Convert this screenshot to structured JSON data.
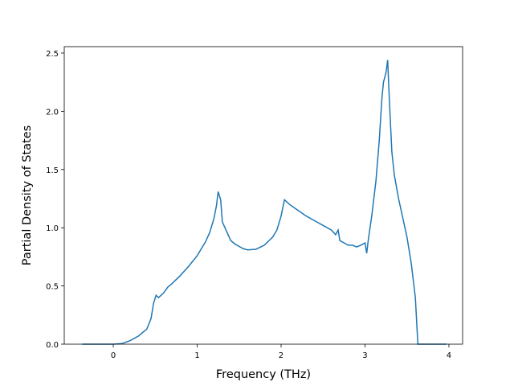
{
  "chart_data": {
    "type": "line",
    "xlabel": "Frequency (THz)",
    "ylabel": "Partial Density of States",
    "x": [
      -0.37,
      0,
      0.1,
      0.2,
      0.3,
      0.4,
      0.45,
      0.48,
      0.51,
      0.54,
      0.6,
      0.65,
      0.7,
      0.8,
      0.9,
      1.0,
      1.1,
      1.15,
      1.2,
      1.23,
      1.25,
      1.28,
      1.3,
      1.35,
      1.4,
      1.45,
      1.5,
      1.55,
      1.6,
      1.7,
      1.8,
      1.9,
      1.95,
      2.0,
      2.04,
      2.1,
      2.2,
      2.3,
      2.4,
      2.5,
      2.6,
      2.65,
      2.68,
      2.7,
      2.8,
      2.85,
      2.9,
      2.95,
      3.0,
      3.02,
      3.04,
      3.08,
      3.13,
      3.17,
      3.2,
      3.22,
      3.25,
      3.27,
      3.29,
      3.32,
      3.35,
      3.4,
      3.5,
      3.55,
      3.6,
      3.63,
      3.97
    ],
    "series": [
      {
        "color": "#1f77b4",
        "values": [
          0,
          0,
          0.005,
          0.03,
          0.07,
          0.13,
          0.22,
          0.35,
          0.42,
          0.4,
          0.44,
          0.49,
          0.52,
          0.59,
          0.67,
          0.76,
          0.88,
          0.96,
          1.08,
          1.19,
          1.31,
          1.24,
          1.05,
          0.97,
          0.89,
          0.86,
          0.84,
          0.82,
          0.81,
          0.815,
          0.85,
          0.92,
          0.98,
          1.1,
          1.24,
          1.2,
          1.15,
          1.1,
          1.06,
          1.02,
          0.98,
          0.94,
          0.98,
          0.89,
          0.85,
          0.85,
          0.835,
          0.85,
          0.87,
          0.78,
          0.9,
          1.1,
          1.4,
          1.75,
          2.1,
          2.25,
          2.33,
          2.44,
          2.1,
          1.65,
          1.45,
          1.25,
          0.92,
          0.7,
          0.4,
          0,
          0
        ]
      }
    ],
    "xlim": [
      -0.584,
      4.163
    ],
    "xticks": [
      0,
      1,
      2,
      3,
      4
    ],
    "ylim": [
      0,
      2.555
    ],
    "yticks": [
      {
        "value": 0,
        "label": "0.0"
      },
      {
        "value": 0.5,
        "label": "0.5"
      },
      {
        "value": 1,
        "label": "1.0"
      },
      {
        "value": 1.5,
        "label": "1.5"
      },
      {
        "value": 2,
        "label": "2.0"
      },
      {
        "value": 2.5,
        "label": "2.5"
      }
    ]
  }
}
